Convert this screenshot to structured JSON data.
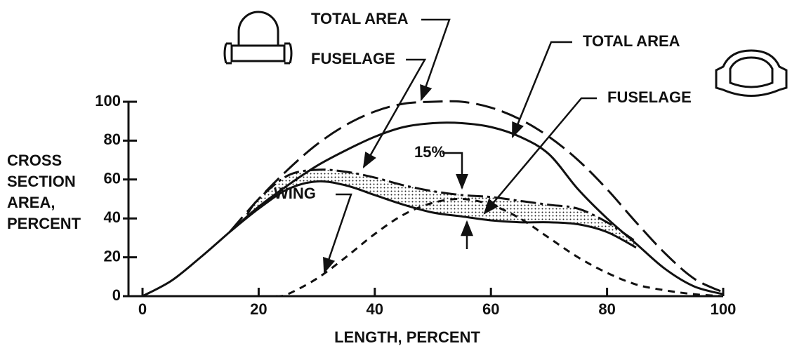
{
  "chart_data": {
    "type": "line",
    "xlabel": "LENGTH, PERCENT",
    "ylabel": [
      "CROSS",
      "SECTION",
      "AREA,",
      "PERCENT"
    ],
    "xlim": [
      0,
      100
    ],
    "ylim": [
      0,
      100
    ],
    "xticks": [
      0,
      20,
      40,
      60,
      80,
      100
    ],
    "yticks": [
      0,
      20,
      40,
      60,
      80,
      100
    ],
    "annotations": [
      "15%"
    ],
    "series": [
      {
        "name": "TOTAL AREA",
        "style": "long-dash",
        "color": "#111111",
        "x": [
          15,
          20,
          25,
          30,
          35,
          40,
          45,
          50,
          55,
          60,
          65,
          70,
          75,
          80,
          85,
          90,
          95,
          100
        ],
        "values": [
          33,
          50,
          65,
          78,
          88,
          95,
          99,
          100,
          100,
          97,
          91,
          82,
          70,
          55,
          38,
          22,
          9,
          2
        ]
      },
      {
        "name": "FUSELAGE",
        "style": "dash-dot",
        "color": "#111111",
        "x": [
          18,
          20,
          25,
          30,
          35,
          40,
          45,
          50,
          55,
          60,
          65,
          70,
          75,
          80,
          85
        ],
        "values": [
          42,
          50,
          62,
          65,
          64,
          61,
          57,
          54,
          52,
          51,
          49,
          47,
          45,
          38,
          28
        ]
      },
      {
        "name": "TOTAL AREA",
        "style": "solid",
        "color": "#111111",
        "x": [
          0,
          5,
          10,
          15,
          20,
          25,
          30,
          35,
          40,
          45,
          50,
          55,
          60,
          65,
          70,
          75,
          80,
          85,
          90,
          95,
          100
        ],
        "values": [
          0,
          8,
          20,
          33,
          46,
          57,
          67,
          75,
          82,
          87,
          89,
          89,
          87,
          82,
          73,
          55,
          40,
          27,
          14,
          5,
          1
        ]
      },
      {
        "name": "FUSELAGE",
        "style": "solid",
        "color": "#111111",
        "x": [
          15,
          20,
          25,
          30,
          35,
          40,
          45,
          50,
          55,
          60,
          65,
          70,
          75,
          80,
          85
        ],
        "values": [
          33,
          45,
          55,
          59,
          57,
          52,
          47,
          43,
          41,
          39,
          38,
          38,
          37,
          33,
          25
        ]
      },
      {
        "name": "WING",
        "style": "short-dash",
        "color": "#111111",
        "x": [
          23,
          25,
          30,
          35,
          40,
          45,
          50,
          55,
          60,
          65,
          70,
          75,
          80,
          85,
          90,
          95,
          100
        ],
        "values": [
          0,
          1,
          9,
          20,
          32,
          42,
          48,
          50,
          47,
          40,
          30,
          20,
          12,
          6,
          3,
          1,
          0
        ]
      }
    ]
  }
}
